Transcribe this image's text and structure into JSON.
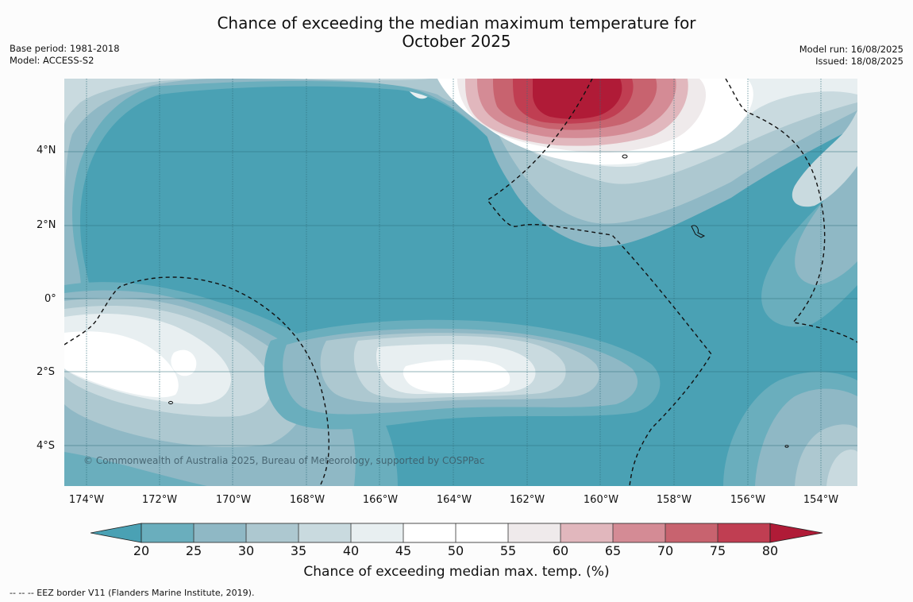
{
  "title": {
    "line1": "Chance of exceeding the median maximum temperature for",
    "line2": "October 2025"
  },
  "meta_left": {
    "base_period": "Base period: 1981-2018",
    "model": "Model: ACCESS-S2"
  },
  "meta_right": {
    "model_run": "Model run: 16/08/2025",
    "issued": "Issued: 18/08/2025"
  },
  "map": {
    "lat_labels": [
      "4°N",
      "2°N",
      "0°",
      "2°S",
      "4°S"
    ],
    "lon_labels": [
      "174°W",
      "172°W",
      "170°W",
      "168°W",
      "166°W",
      "164°W",
      "162°W",
      "160°W",
      "158°W",
      "156°W",
      "154°W"
    ],
    "copyright": "© Commonwealth of Australia 2025, Bureau of Meteorology, supported by COSPPac",
    "colors": {
      "c20": "#4aa1b4",
      "c25": "#6aaebd",
      "c30": "#8fb8c5",
      "c35": "#adc8d0",
      "c40": "#c9dadf",
      "c45": "#e8eff1",
      "c50": "#ffffff",
      "c55": "#ffffff",
      "c60": "#efeaeb",
      "c65": "#e1b7bd",
      "c70": "#d48b95",
      "c75": "#c8636f",
      "c80": "#c03e52",
      "cmax": "#b01b37"
    }
  },
  "colorbar": {
    "ticks": [
      "20",
      "25",
      "30",
      "35",
      "40",
      "45",
      "50",
      "55",
      "60",
      "65",
      "70",
      "75",
      "80"
    ],
    "title": "Chance of exceeding median max. temp. (%)"
  },
  "footer": {
    "legend": "--  --  -- EEZ border V11 (Flanders Marine Institute, 2019)."
  }
}
